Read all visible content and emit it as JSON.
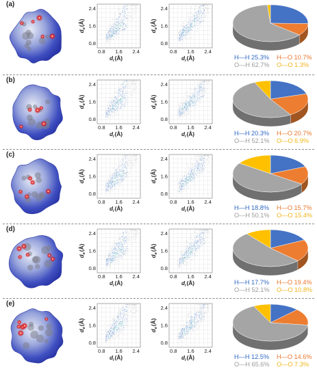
{
  "colors": {
    "H-H": "#4472c4",
    "H-O": "#ed7d31",
    "O-H": "#a5a5a5",
    "O-O": "#ffc000",
    "fingerprint_points": "#1c64c8",
    "fingerprint_background": "#c0c0c0"
  },
  "fingerprint_axes": {
    "ticks": [
      "0.8",
      "1.6",
      "2.4"
    ],
    "xlabel_base": "d",
    "xlabel_sub": "i",
    "xlabel_unit": "(Å)",
    "ylabel_base": "d",
    "ylabel_sub": "e",
    "ylabel_unit": "(Å)"
  },
  "chart_data": [
    {
      "type": "pie",
      "panel": "(a)",
      "labels": [
        "H—H",
        "H—O",
        "O—H",
        "O—O"
      ],
      "values": [
        25.3,
        10.7,
        62.7,
        1.3
      ],
      "display": [
        "25.3%",
        "10.7%",
        "62.7%",
        "1.3%"
      ]
    },
    {
      "type": "pie",
      "panel": "(b)",
      "labels": [
        "H—H",
        "H—O",
        "O—H",
        "O—O"
      ],
      "values": [
        20.3,
        20.7,
        52.1,
        6.9
      ],
      "display": [
        "20.3%",
        "20.7%",
        "52.1%",
        "6.9%"
      ]
    },
    {
      "type": "pie",
      "panel": "(c)",
      "labels": [
        "H—H",
        "H—O",
        "O—H",
        "O—O"
      ],
      "values": [
        18.8,
        15.7,
        50.1,
        15.4
      ],
      "display": [
        "18.8%",
        "15.7%",
        "50.1%",
        "15.4%"
      ]
    },
    {
      "type": "pie",
      "panel": "(d)",
      "labels": [
        "H—H",
        "H—O",
        "O—H",
        "O—O"
      ],
      "values": [
        17.7,
        19.4,
        52.1,
        10.8
      ],
      "display": [
        "17.7%",
        "19.4%",
        "52.1%",
        "10.8%"
      ]
    },
    {
      "type": "pie",
      "panel": "(e)",
      "labels": [
        "H—H",
        "H—O",
        "O—H",
        "O—O"
      ],
      "values": [
        12.5,
        14.6,
        65.6,
        7.3
      ],
      "display": [
        "12.5%",
        "14.6%",
        "65.6%",
        "7.3%"
      ]
    },
    {
      "type": "scatter",
      "kind": "fingerprint",
      "xlim": [
        0.6,
        2.6
      ],
      "ylim": [
        0.6,
        2.6
      ],
      "xticks": [
        0.8,
        1.6,
        2.4
      ],
      "yticks": [
        0.8,
        1.6,
        2.4
      ]
    }
  ]
}
